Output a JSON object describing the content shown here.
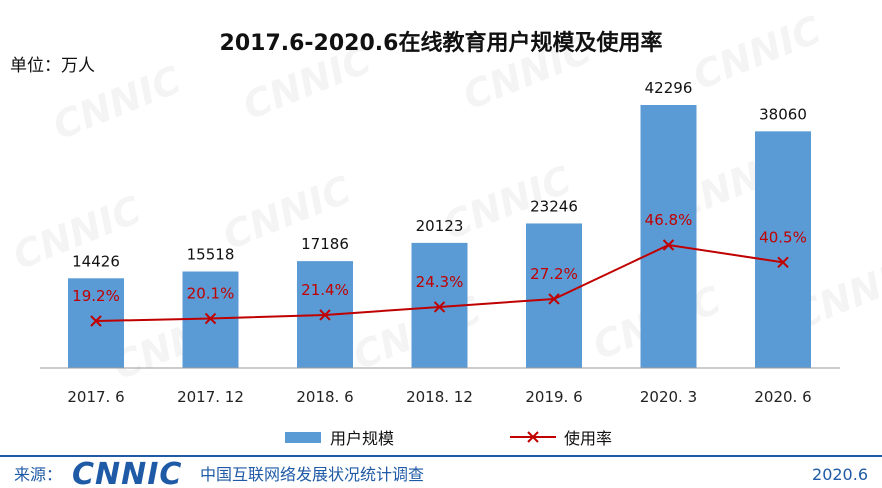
{
  "chart_data": {
    "type": "bar",
    "title": "2017.6-2020.6在线教育用户规模及使用率",
    "unit_label": "单位：万人",
    "categories": [
      "2017. 6",
      "2017. 12",
      "2018. 6",
      "2018. 12",
      "2019. 6",
      "2020. 3",
      "2020. 6"
    ],
    "series": [
      {
        "name": "用户规模",
        "type": "bar",
        "values": [
          14426,
          15518,
          17186,
          20123,
          23246,
          42296,
          38060
        ],
        "labels": [
          "14426",
          "15518",
          "17186",
          "20123",
          "23246",
          "42296",
          "38060"
        ],
        "color": "#5b9bd5"
      },
      {
        "name": "使用率",
        "type": "line",
        "values": [
          19.2,
          20.1,
          21.4,
          24.3,
          27.2,
          46.8,
          40.5
        ],
        "labels": [
          "19.2%",
          "20.1%",
          "21.4%",
          "24.3%",
          "27.2%",
          "46.8%",
          "40.5%"
        ],
        "color": "#c00000"
      }
    ],
    "ylim": [
      0,
      50000
    ],
    "rate_ylim": [
      0,
      60
    ],
    "grid": false,
    "legend_position": "bottom"
  },
  "footer": {
    "source_label": "来源：",
    "logo_text": "CNNIC",
    "source_name": "中国互联网络发展状况统计调查",
    "date": "2020.6"
  },
  "watermark_text": "CNNIC"
}
